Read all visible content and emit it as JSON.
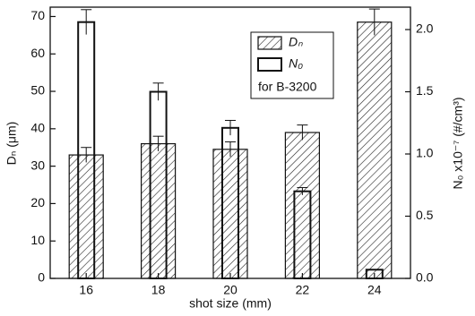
{
  "chart_data": {
    "type": "bar",
    "x_label": "shot size (mm)",
    "y_label": "Dₙ (μm)",
    "y2_label": "N₀ x10⁻⁷ (#/cm³)",
    "categories": [
      "16",
      "18",
      "20",
      "22",
      "24"
    ],
    "series": [
      {
        "name": "Dₙ",
        "style": "hatched",
        "color": "#111111",
        "values": [
          33,
          36,
          34.5,
          39,
          68.5
        ],
        "errors": [
          2,
          2,
          2,
          2,
          3.5
        ]
      },
      {
        "name": "N₀",
        "style": "open",
        "color": "#111111",
        "axis": "y2",
        "values": [
          2.06,
          1.5,
          1.21,
          0.7,
          0.07
        ],
        "errors": [
          0.1,
          0.07,
          0.06,
          0.03,
          0
        ]
      }
    ],
    "legend_note": "for B-3200",
    "ylim": [
      0,
      72.5
    ],
    "yticks": [
      0,
      10,
      20,
      30,
      40,
      50,
      60,
      70
    ],
    "y2lim": [
      0,
      2.18
    ],
    "y2ticks": [
      {
        "value": 0,
        "label": "0.0"
      },
      0.5,
      {
        "value": 1,
        "label": "1.0"
      },
      1.5,
      {
        "value": 2,
        "label": "2.0"
      }
    ]
  }
}
